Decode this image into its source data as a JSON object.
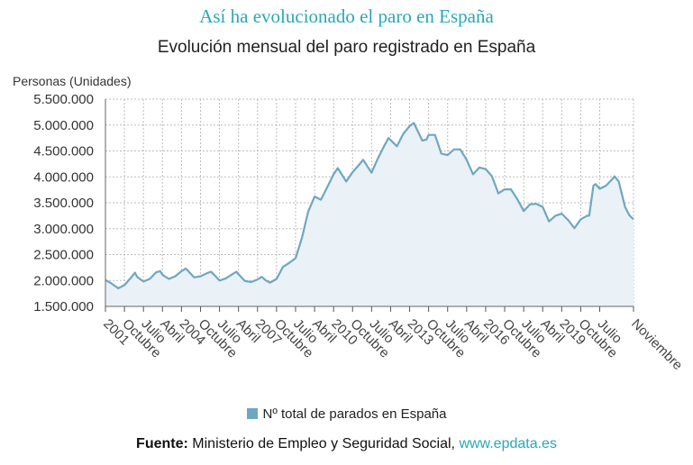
{
  "header": {
    "headline": "Así ha evolucionado el paro en España",
    "chart_title": "Evolución mensual del paro registrado en España"
  },
  "legend": {
    "label": "Nº total de parados en España"
  },
  "source": {
    "prefix": "Fuente:",
    "text": "Ministerio de Empleo y Seguridad Social,",
    "link": "www.epdata.es"
  },
  "colors": {
    "line": "#6fa7c1",
    "fill": "#eaf1f7",
    "grid": "#bdbdbd",
    "accent": "#28a8b8"
  },
  "chart_data": {
    "type": "area",
    "title": "Evolución mensual del paro registrado en España",
    "ylabel": "Personas (Unidades)",
    "xlabel": "",
    "ylim": [
      1500000,
      5500000
    ],
    "yticks": [
      1500000,
      2000000,
      2500000,
      3000000,
      3500000,
      4000000,
      4500000,
      5000000,
      5500000
    ],
    "ytick_labels": [
      "1.500.000",
      "2.000.000",
      "2.500.000",
      "3.000.000",
      "3.500.000",
      "4.000.000",
      "4.500.000",
      "5.000.000",
      "5.500.000"
    ],
    "xlim": [
      "2001-01",
      "2021-11"
    ],
    "xticks": [
      {
        "x": "2001-01",
        "label": "2001"
      },
      {
        "x": "2001-10",
        "label": "Octubre"
      },
      {
        "x": "2002-07",
        "label": "Julio"
      },
      {
        "x": "2003-04",
        "label": "Abril"
      },
      {
        "x": "2004-01",
        "label": "2004"
      },
      {
        "x": "2004-10",
        "label": "Octubre"
      },
      {
        "x": "2005-07",
        "label": "Julio"
      },
      {
        "x": "2006-04",
        "label": "Abril"
      },
      {
        "x": "2007-01",
        "label": "2007"
      },
      {
        "x": "2007-10",
        "label": "Octubre"
      },
      {
        "x": "2008-07",
        "label": "Julio"
      },
      {
        "x": "2009-04",
        "label": "Abril"
      },
      {
        "x": "2010-01",
        "label": "2010"
      },
      {
        "x": "2010-10",
        "label": "Octubre"
      },
      {
        "x": "2011-07",
        "label": "Julio"
      },
      {
        "x": "2012-04",
        "label": "Abril"
      },
      {
        "x": "2013-01",
        "label": "2013"
      },
      {
        "x": "2013-10",
        "label": "Octubre"
      },
      {
        "x": "2014-07",
        "label": "Julio"
      },
      {
        "x": "2015-04",
        "label": "Abril"
      },
      {
        "x": "2016-01",
        "label": "2016"
      },
      {
        "x": "2016-10",
        "label": "Octubre"
      },
      {
        "x": "2017-07",
        "label": "Julio"
      },
      {
        "x": "2018-04",
        "label": "Abril"
      },
      {
        "x": "2019-01",
        "label": "2019"
      },
      {
        "x": "2019-10",
        "label": "Octubre"
      },
      {
        "x": "2020-07",
        "label": "Julio"
      },
      {
        "x": "2021-11",
        "label": "Noviembre"
      }
    ],
    "grid": true,
    "legend_position": "bottom",
    "series": [
      {
        "name": "Nº total de parados en España",
        "points": [
          [
            "2001-01",
            2010000
          ],
          [
            "2001-04",
            1940000
          ],
          [
            "2001-07",
            1850000
          ],
          [
            "2001-10",
            1910000
          ],
          [
            "2002-01",
            2050000
          ],
          [
            "2002-03",
            2150000
          ],
          [
            "2002-04",
            2070000
          ],
          [
            "2002-07",
            1980000
          ],
          [
            "2002-10",
            2030000
          ],
          [
            "2003-01",
            2160000
          ],
          [
            "2003-03",
            2180000
          ],
          [
            "2003-04",
            2110000
          ],
          [
            "2003-07",
            2030000
          ],
          [
            "2003-10",
            2080000
          ],
          [
            "2004-01",
            2180000
          ],
          [
            "2004-03",
            2230000
          ],
          [
            "2004-04",
            2190000
          ],
          [
            "2004-07",
            2060000
          ],
          [
            "2004-10",
            2080000
          ],
          [
            "2005-01",
            2140000
          ],
          [
            "2005-03",
            2170000
          ],
          [
            "2005-04",
            2130000
          ],
          [
            "2005-07",
            2000000
          ],
          [
            "2005-10",
            2040000
          ],
          [
            "2006-01",
            2120000
          ],
          [
            "2006-03",
            2170000
          ],
          [
            "2006-04",
            2120000
          ],
          [
            "2006-07",
            1990000
          ],
          [
            "2006-10",
            1970000
          ],
          [
            "2007-01",
            2020000
          ],
          [
            "2007-03",
            2070000
          ],
          [
            "2007-05",
            2000000
          ],
          [
            "2007-07",
            1960000
          ],
          [
            "2007-10",
            2030000
          ],
          [
            "2008-01",
            2260000
          ],
          [
            "2008-04",
            2340000
          ],
          [
            "2008-07",
            2430000
          ],
          [
            "2008-10",
            2820000
          ],
          [
            "2009-01",
            3330000
          ],
          [
            "2009-04",
            3620000
          ],
          [
            "2009-07",
            3560000
          ],
          [
            "2009-10",
            3800000
          ],
          [
            "2010-01",
            4050000
          ],
          [
            "2010-03",
            4170000
          ],
          [
            "2010-07",
            3910000
          ],
          [
            "2010-10",
            4090000
          ],
          [
            "2011-01",
            4230000
          ],
          [
            "2011-03",
            4330000
          ],
          [
            "2011-07",
            4080000
          ],
          [
            "2011-10",
            4360000
          ],
          [
            "2012-01",
            4600000
          ],
          [
            "2012-03",
            4750000
          ],
          [
            "2012-07",
            4590000
          ],
          [
            "2012-10",
            4830000
          ],
          [
            "2013-01",
            4980000
          ],
          [
            "2013-03",
            5040000
          ],
          [
            "2013-07",
            4700000
          ],
          [
            "2013-09",
            4720000
          ],
          [
            "2013-10",
            4810000
          ],
          [
            "2014-01",
            4810000
          ],
          [
            "2014-04",
            4450000
          ],
          [
            "2014-07",
            4420000
          ],
          [
            "2014-10",
            4530000
          ],
          [
            "2015-01",
            4530000
          ],
          [
            "2015-04",
            4330000
          ],
          [
            "2015-07",
            4050000
          ],
          [
            "2015-10",
            4180000
          ],
          [
            "2016-01",
            4150000
          ],
          [
            "2016-04",
            4010000
          ],
          [
            "2016-07",
            3680000
          ],
          [
            "2016-10",
            3760000
          ],
          [
            "2017-01",
            3760000
          ],
          [
            "2017-04",
            3570000
          ],
          [
            "2017-07",
            3340000
          ],
          [
            "2017-10",
            3470000
          ],
          [
            "2018-01",
            3480000
          ],
          [
            "2018-04",
            3420000
          ],
          [
            "2018-07",
            3140000
          ],
          [
            "2018-10",
            3250000
          ],
          [
            "2019-01",
            3290000
          ],
          [
            "2019-04",
            3170000
          ],
          [
            "2019-07",
            3010000
          ],
          [
            "2019-10",
            3180000
          ],
          [
            "2020-01",
            3250000
          ],
          [
            "2020-02",
            3250000
          ],
          [
            "2020-04",
            3830000
          ],
          [
            "2020-05",
            3860000
          ],
          [
            "2020-07",
            3770000
          ],
          [
            "2020-10",
            3830000
          ],
          [
            "2021-01",
            3960000
          ],
          [
            "2021-02",
            4010000
          ],
          [
            "2021-04",
            3910000
          ],
          [
            "2021-07",
            3420000
          ],
          [
            "2021-09",
            3260000
          ],
          [
            "2021-11",
            3180000
          ]
        ]
      }
    ]
  }
}
